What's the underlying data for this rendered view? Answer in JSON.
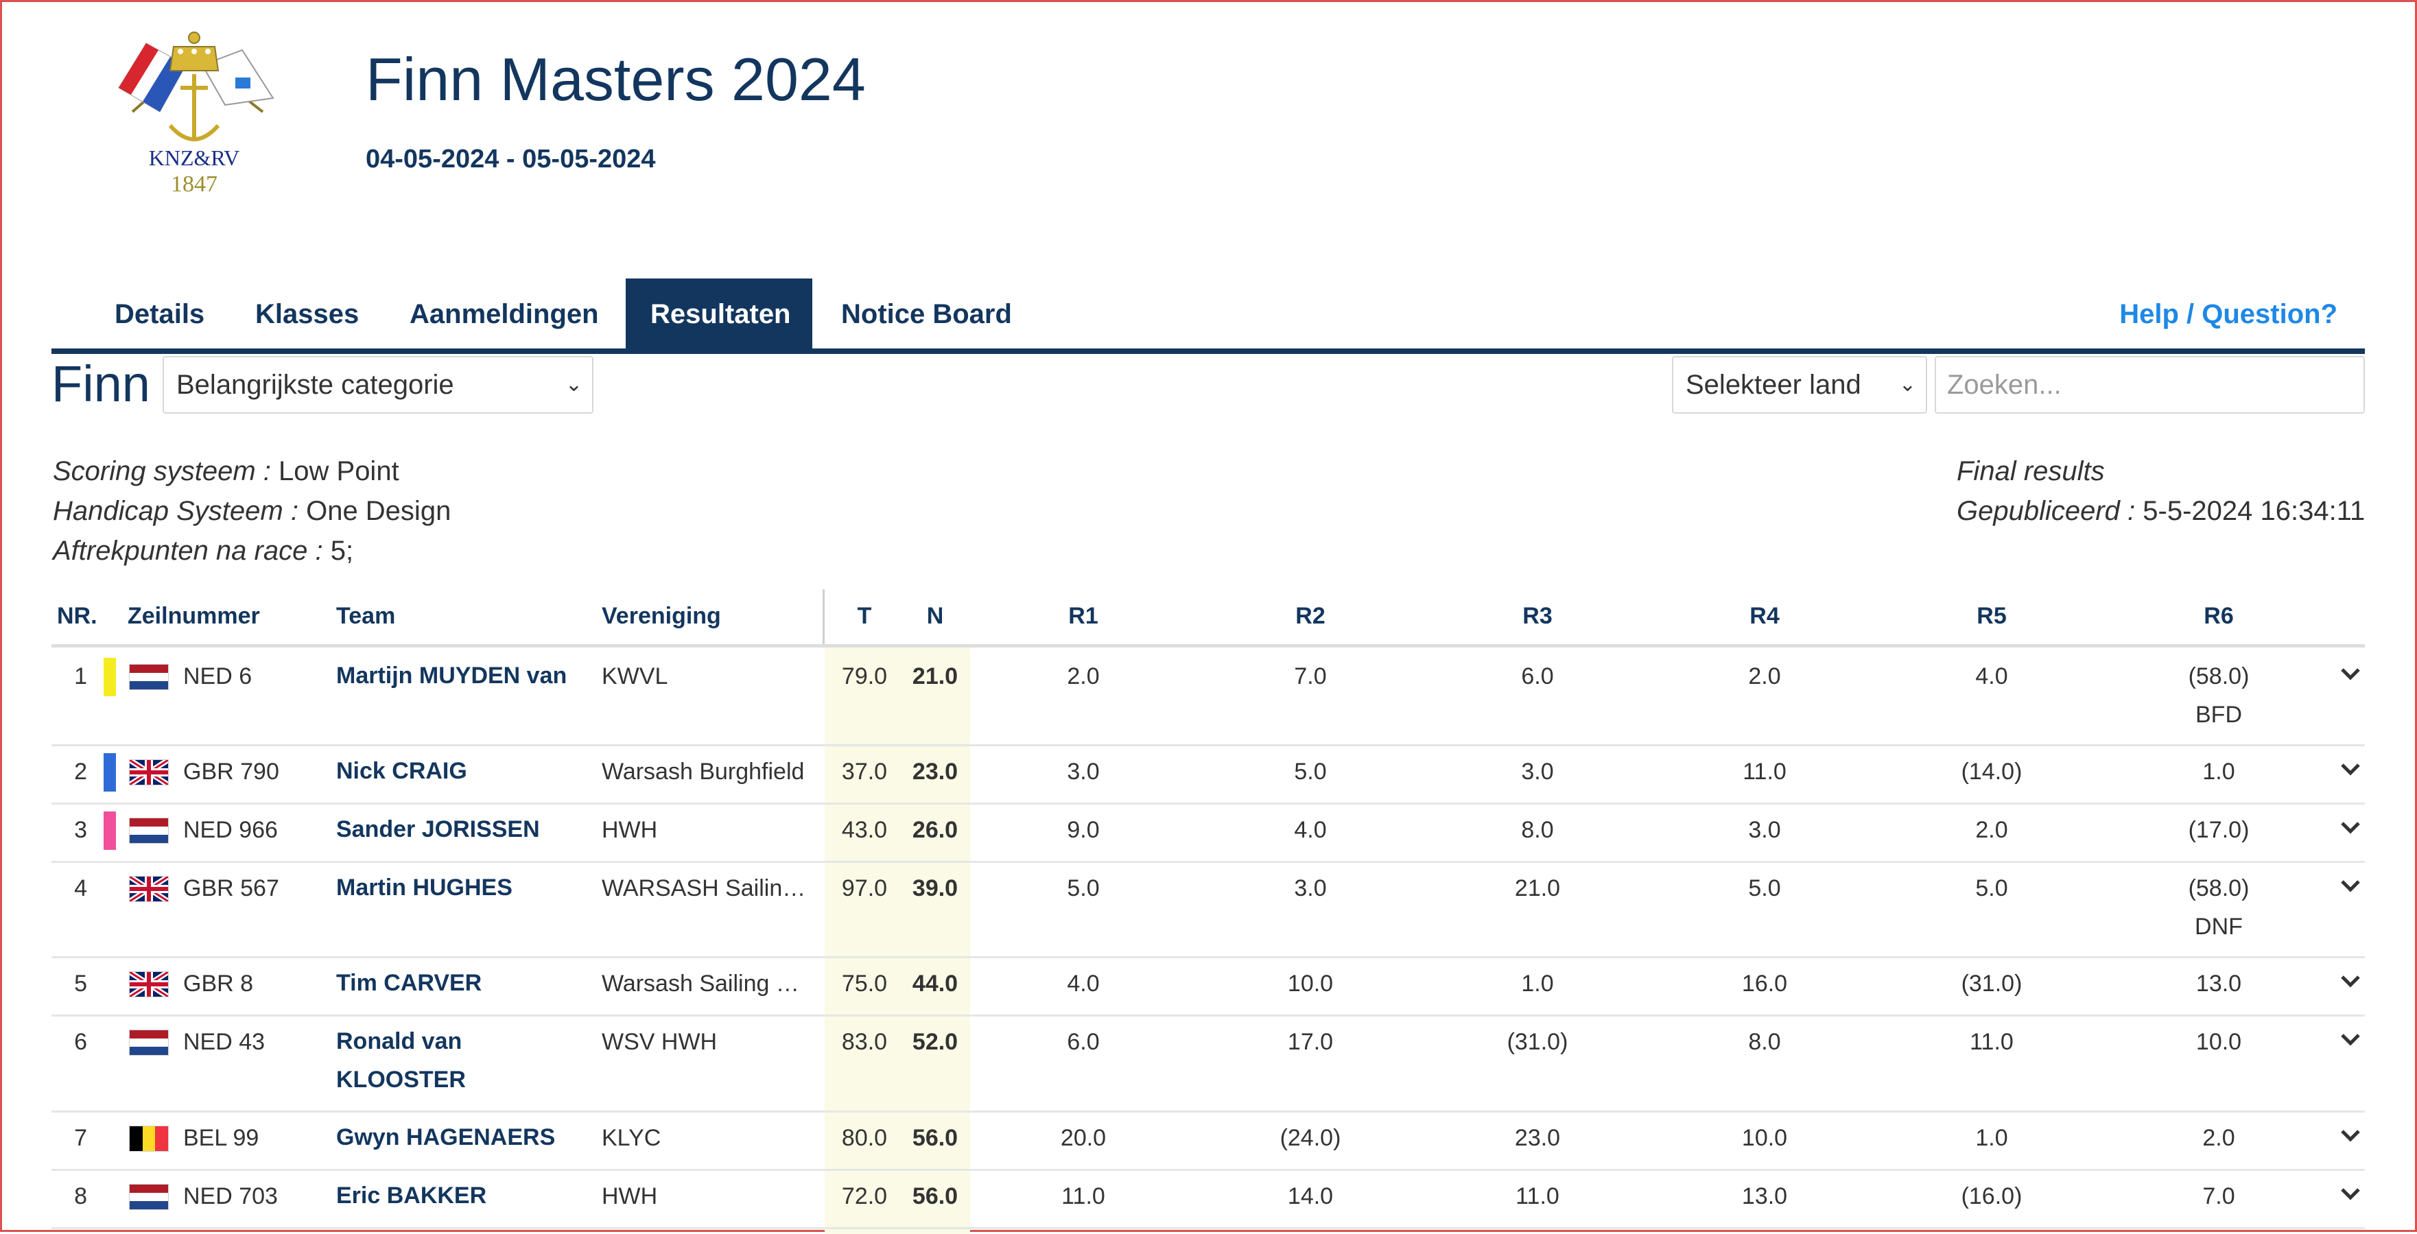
{
  "event": {
    "logo_text": "KNZ&RV",
    "logo_year": "1847",
    "title": "Finn Masters 2024",
    "dates": "04-05-2024 - 05-05-2024"
  },
  "nav": {
    "tabs": [
      {
        "label": "Details"
      },
      {
        "label": "Klasses"
      },
      {
        "label": "Aanmeldingen"
      },
      {
        "label": "Resultaten",
        "active": true
      },
      {
        "label": "Notice Board"
      }
    ],
    "help": "Help / Question?"
  },
  "filters": {
    "class_name": "Finn",
    "category_select": "Belangrijkste categorie",
    "country_select": "Selekteer land",
    "search_placeholder": "Zoeken..."
  },
  "meta": {
    "scoring_label": "Scoring systeem :",
    "scoring_value": "Low Point",
    "handicap_label": "Handicap Systeem :",
    "handicap_value": "One Design",
    "discard_label": "Aftrekpunten na race :",
    "discard_value": "5;",
    "status": "Final results",
    "published_label": "Gepubliceerd :",
    "published_value": "5-5-2024 16:34:11"
  },
  "table": {
    "headers": {
      "nr": "NR.",
      "sail": "Zeilnummer",
      "team": "Team",
      "club": "Vereniging",
      "total": "T",
      "net": "N",
      "races": [
        "R1",
        "R2",
        "R3",
        "R4",
        "R5",
        "R6"
      ]
    },
    "rows": [
      {
        "nr": "1",
        "marker_color": "#f5ec20",
        "country": "NED",
        "sail": "NED 6",
        "team": [
          "Martijn MUYDEN van"
        ],
        "club": "KWVL",
        "total": "79.0",
        "net": "21.0",
        "races": [
          "2.0",
          "7.0",
          "6.0",
          "2.0",
          "4.0",
          "(58.0)"
        ],
        "note": "BFD"
      },
      {
        "nr": "2",
        "marker_color": "#2e6ad8",
        "country": "GBR",
        "sail": "GBR 790",
        "team": [
          "Nick CRAIG"
        ],
        "club": "Warsash Burghfield",
        "total": "37.0",
        "net": "23.0",
        "races": [
          "3.0",
          "5.0",
          "3.0",
          "11.0",
          "(14.0)",
          "1.0"
        ],
        "note": ""
      },
      {
        "nr": "3",
        "marker_color": "#f0509a",
        "country": "NED",
        "sail": "NED 966",
        "team": [
          "Sander JORISSEN"
        ],
        "club": "HWH",
        "total": "43.0",
        "net": "26.0",
        "races": [
          "9.0",
          "4.0",
          "8.0",
          "3.0",
          "2.0",
          "(17.0)"
        ],
        "note": ""
      },
      {
        "nr": "4",
        "marker_color": "",
        "country": "GBR",
        "sail": "GBR 567",
        "team": [
          "Martin HUGHES"
        ],
        "club": "WARSASH Sailing Club",
        "total": "97.0",
        "net": "39.0",
        "races": [
          "5.0",
          "3.0",
          "21.0",
          "5.0",
          "5.0",
          "(58.0)"
        ],
        "note": "DNF"
      },
      {
        "nr": "5",
        "marker_color": "",
        "country": "GBR",
        "sail": "GBR 8",
        "team": [
          "Tim CARVER"
        ],
        "club": "Warsash Sailing Club",
        "total": "75.0",
        "net": "44.0",
        "races": [
          "4.0",
          "10.0",
          "1.0",
          "16.0",
          "(31.0)",
          "13.0"
        ],
        "note": ""
      },
      {
        "nr": "6",
        "marker_color": "",
        "country": "NED",
        "sail": "NED 43",
        "team": [
          "Ronald van",
          "KLOOSTER"
        ],
        "club": "WSV HWH",
        "total": "83.0",
        "net": "52.0",
        "races": [
          "6.0",
          "17.0",
          "(31.0)",
          "8.0",
          "11.0",
          "10.0"
        ],
        "note": ""
      },
      {
        "nr": "7",
        "marker_color": "",
        "country": "BEL",
        "sail": "BEL 99",
        "team": [
          "Gwyn HAGENAERS"
        ],
        "club": "KLYC",
        "total": "80.0",
        "net": "56.0",
        "races": [
          "20.0",
          "(24.0)",
          "23.0",
          "10.0",
          "1.0",
          "2.0"
        ],
        "note": ""
      },
      {
        "nr": "8",
        "marker_color": "",
        "country": "NED",
        "sail": "NED 703",
        "team": [
          "Eric BAKKER"
        ],
        "club": "HWH",
        "total": "72.0",
        "net": "56.0",
        "races": [
          "11.0",
          "14.0",
          "11.0",
          "13.0",
          "(16.0)",
          "7.0"
        ],
        "note": ""
      }
    ]
  }
}
